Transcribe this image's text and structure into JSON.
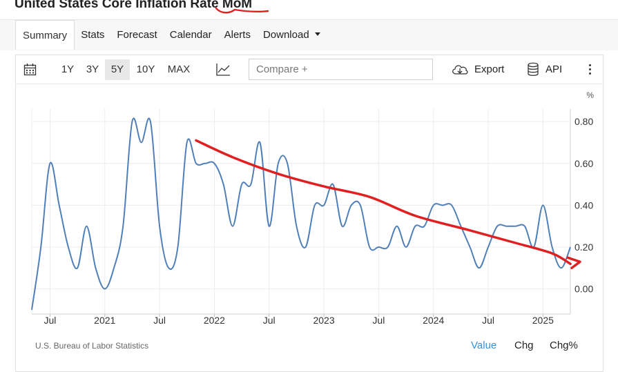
{
  "page": {
    "title": "United States Core Inflation Rate MoM"
  },
  "nav": {
    "tabs": [
      {
        "label": "Summary",
        "active": true
      },
      {
        "label": "Stats"
      },
      {
        "label": "Forecast"
      },
      {
        "label": "Calendar"
      },
      {
        "label": "Alerts"
      },
      {
        "label": "Download",
        "has_dropdown": true
      }
    ]
  },
  "toolbar": {
    "calendar_icon": "calendar-icon",
    "ranges": [
      "1Y",
      "3Y",
      "5Y",
      "10Y",
      "MAX"
    ],
    "selected_range": "5Y",
    "chart_type_icon": "line-chart-icon",
    "compare_placeholder": "Compare +",
    "export_label": "Export",
    "export_icon": "cloud-download-icon",
    "api_label": "API",
    "api_icon": "database-icon",
    "more_icon": "kebab-menu-icon"
  },
  "footer": {
    "source": "U.S. Bureau of Labor Statistics",
    "value_tabs": [
      "Value",
      "Chg",
      "Chg%"
    ],
    "selected_value_tab": "Value"
  },
  "colors": {
    "series_line": "#4f7fb8",
    "annotation": "#e02020",
    "active_tab_text": "#3b8fd9"
  },
  "chart_data": {
    "type": "line",
    "title": "",
    "xlabel": "",
    "ylabel": "%",
    "ylim": [
      -0.12,
      0.86
    ],
    "xlim": [
      "2020-05",
      "2025-04"
    ],
    "y_ticks": [
      "0.80",
      "0.60",
      "0.40",
      "0.20",
      "0.00"
    ],
    "y_tick_values": [
      0.8,
      0.6,
      0.4,
      0.2,
      0.0
    ],
    "x_ticks": [
      {
        "label": "Jul",
        "date": "2020-07"
      },
      {
        "label": "2021",
        "date": "2021-01"
      },
      {
        "label": "Jul",
        "date": "2021-07"
      },
      {
        "label": "2022",
        "date": "2022-01"
      },
      {
        "label": "Jul",
        "date": "2022-07"
      },
      {
        "label": "2023",
        "date": "2023-01"
      },
      {
        "label": "Jul",
        "date": "2023-07"
      },
      {
        "label": "2024",
        "date": "2024-01"
      },
      {
        "label": "Jul",
        "date": "2024-07"
      },
      {
        "label": "2025",
        "date": "2025-01"
      }
    ],
    "grid": true,
    "y_axis_position": "right",
    "series": [
      {
        "x": [
          "2020-05",
          "2020-06",
          "2020-07",
          "2020-08",
          "2020-09",
          "2020-10",
          "2020-11",
          "2020-12",
          "2021-01",
          "2021-02",
          "2021-03",
          "2021-04",
          "2021-05",
          "2021-06",
          "2021-07",
          "2021-08",
          "2021-09",
          "2021-10",
          "2021-11",
          "2021-12",
          "2022-01",
          "2022-02",
          "2022-03",
          "2022-04",
          "2022-05",
          "2022-06",
          "2022-07",
          "2022-08",
          "2022-09",
          "2022-10",
          "2022-11",
          "2022-12",
          "2023-01",
          "2023-02",
          "2023-03",
          "2023-04",
          "2023-05",
          "2023-06",
          "2023-07",
          "2023-08",
          "2023-09",
          "2023-10",
          "2023-11",
          "2023-12",
          "2024-01",
          "2024-02",
          "2024-03",
          "2024-04",
          "2024-05",
          "2024-06",
          "2024-07",
          "2024-08",
          "2024-09",
          "2024-10",
          "2024-11",
          "2024-12",
          "2025-01",
          "2025-02",
          "2025-03",
          "2025-04"
        ],
        "values": [
          -0.1,
          0.2,
          0.6,
          0.4,
          0.2,
          0.1,
          0.3,
          0.1,
          0.0,
          0.1,
          0.3,
          0.8,
          0.7,
          0.8,
          0.3,
          0.1,
          0.2,
          0.7,
          0.6,
          0.6,
          0.6,
          0.5,
          0.3,
          0.5,
          0.5,
          0.7,
          0.3,
          0.6,
          0.6,
          0.3,
          0.2,
          0.4,
          0.4,
          0.5,
          0.3,
          0.4,
          0.4,
          0.2,
          0.2,
          0.2,
          0.3,
          0.2,
          0.3,
          0.3,
          0.4,
          0.4,
          0.4,
          0.3,
          0.2,
          0.1,
          0.2,
          0.3,
          0.3,
          0.3,
          0.3,
          0.2,
          0.4,
          0.2,
          0.1,
          0.2
        ]
      }
    ],
    "annotation": {
      "type": "hand-drawn trend arrow",
      "x": [
        "2021-11",
        "2022-03",
        "2022-08",
        "2023-01",
        "2023-06",
        "2023-11",
        "2024-05",
        "2024-10",
        "2025-02",
        "2025-04"
      ],
      "values": [
        0.71,
        0.63,
        0.55,
        0.49,
        0.44,
        0.35,
        0.28,
        0.22,
        0.17,
        0.12
      ]
    }
  }
}
